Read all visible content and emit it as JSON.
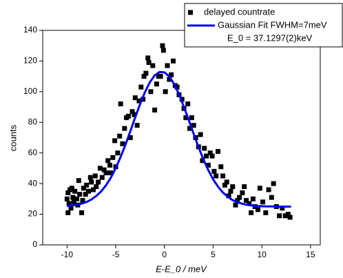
{
  "chart_data": {
    "type": "scatter",
    "xlabel": "E-E_0 / meV",
    "ylabel": "counts",
    "annotation": "E_0 = 37.1297(2)keV",
    "xlim": [
      -12.5,
      16
    ],
    "ylim": [
      0,
      140
    ],
    "xticks": [
      -10,
      -5,
      0,
      5,
      10,
      15
    ],
    "yticks": [
      0,
      20,
      40,
      60,
      80,
      100,
      120,
      140
    ],
    "legend": "upper right",
    "series": [
      {
        "name": "delayed countrate",
        "type": "scatter",
        "color": "#000000",
        "x": [
          -10.0,
          -9.9,
          -9.9,
          -9.8,
          -9.7,
          -9.6,
          -9.5,
          -9.4,
          -9.3,
          -9.2,
          -9.0,
          -8.9,
          -8.8,
          -8.7,
          -8.5,
          -8.4,
          -8.3,
          -8.1,
          -8.0,
          -7.8,
          -7.6,
          -7.5,
          -7.3,
          -7.1,
          -7.0,
          -6.8,
          -6.6,
          -6.4,
          -6.2,
          -6.0,
          -5.8,
          -5.6,
          -5.5,
          -5.3,
          -5.1,
          -5.0,
          -4.8,
          -4.6,
          -4.5,
          -4.3,
          -4.1,
          -3.9,
          -3.7,
          -3.5,
          -3.3,
          -3.1,
          -3.0,
          -2.8,
          -2.6,
          -2.4,
          -2.2,
          -2.1,
          -1.9,
          -1.7,
          -1.6,
          -1.4,
          -1.2,
          -1.0,
          -0.8,
          -0.6,
          -0.4,
          -0.2,
          -0.1,
          0.1,
          0.3,
          0.5,
          0.7,
          0.9,
          1.1,
          1.3,
          1.5,
          1.8,
          2.0,
          2.2,
          2.4,
          2.6,
          2.8,
          3.0,
          3.2,
          3.5,
          3.7,
          3.9,
          4.1,
          4.3,
          4.5,
          4.7,
          4.9,
          5.1,
          5.3,
          5.5,
          5.8,
          6.0,
          6.2,
          6.4,
          6.6,
          6.8,
          7.0,
          7.3,
          7.5,
          7.7,
          8.0,
          8.2,
          8.4,
          8.7,
          8.9,
          9.1,
          9.3,
          9.6,
          9.8,
          10.1,
          10.4,
          10.7,
          11.0,
          11.2,
          11.5,
          11.8,
          12.1,
          12.4,
          12.7,
          12.9
        ],
        "values": [
          30,
          21,
          34,
          27,
          36,
          24,
          37,
          31,
          28,
          35,
          30,
          26,
          42,
          33,
          21,
          29,
          37,
          33,
          39,
          35,
          44,
          41,
          36,
          45,
          38,
          41,
          50,
          44,
          49,
          47,
          55,
          52,
          47,
          57,
          68,
          51,
          60,
          71,
          92,
          66,
          76,
          83,
          84,
          70,
          87,
          85,
          96,
          78,
          94,
          103,
          95,
          110,
          112,
          122,
          119,
          100,
          117,
          88,
          105,
          110,
          110,
          130,
          127,
          100,
          117,
          108,
          111,
          120,
          104,
          103,
          98,
          95,
          89,
          83,
          92,
          76,
          83,
          78,
          70,
          64,
          72,
          55,
          63,
          58,
          52,
          60,
          58,
          48,
          45,
          61,
          51,
          45,
          39,
          41,
          32,
          35,
          38,
          26,
          29,
          31,
          34,
          38,
          29,
          27,
          21,
          30,
          25,
          23,
          37,
          28,
          21,
          36,
          31,
          40,
          25,
          19,
          24,
          19,
          20,
          18
        ]
      },
      {
        "name": "Gaussian Fit FWHM=7meV",
        "type": "line",
        "color": "#0000ee",
        "x": [
          -10,
          -9.5,
          -9,
          -8.5,
          -8,
          -7.5,
          -7,
          -6.5,
          -6,
          -5.5,
          -5,
          -4.5,
          -4,
          -3.5,
          -3,
          -2.5,
          -2,
          -1.5,
          -1,
          -0.5,
          0,
          0.5,
          1,
          1.5,
          2,
          2.5,
          3,
          3.5,
          4,
          4.5,
          5,
          5.5,
          6,
          6.5,
          7,
          7.5,
          8,
          8.5,
          9,
          9.5,
          10,
          10.5,
          11,
          11.5,
          12,
          12.5,
          13
        ],
        "values": [
          25.4,
          25.7,
          26.2,
          26.9,
          28.0,
          29.6,
          31.9,
          34.9,
          38.9,
          43.9,
          50.1,
          57.4,
          65.4,
          74.2,
          83.2,
          91.9,
          99.7,
          106.1,
          110.6,
          112.8,
          112.6,
          109.9,
          104.9,
          98.2,
          90.1,
          81.4,
          72.4,
          63.8,
          55.8,
          48.8,
          42.8,
          38.0,
          34.2,
          31.4,
          29.2,
          27.8,
          26.8,
          26.1,
          25.7,
          25.4,
          25.2,
          25.1,
          25.1,
          25.0,
          25.0,
          25.0,
          25.0
        ]
      }
    ]
  }
}
